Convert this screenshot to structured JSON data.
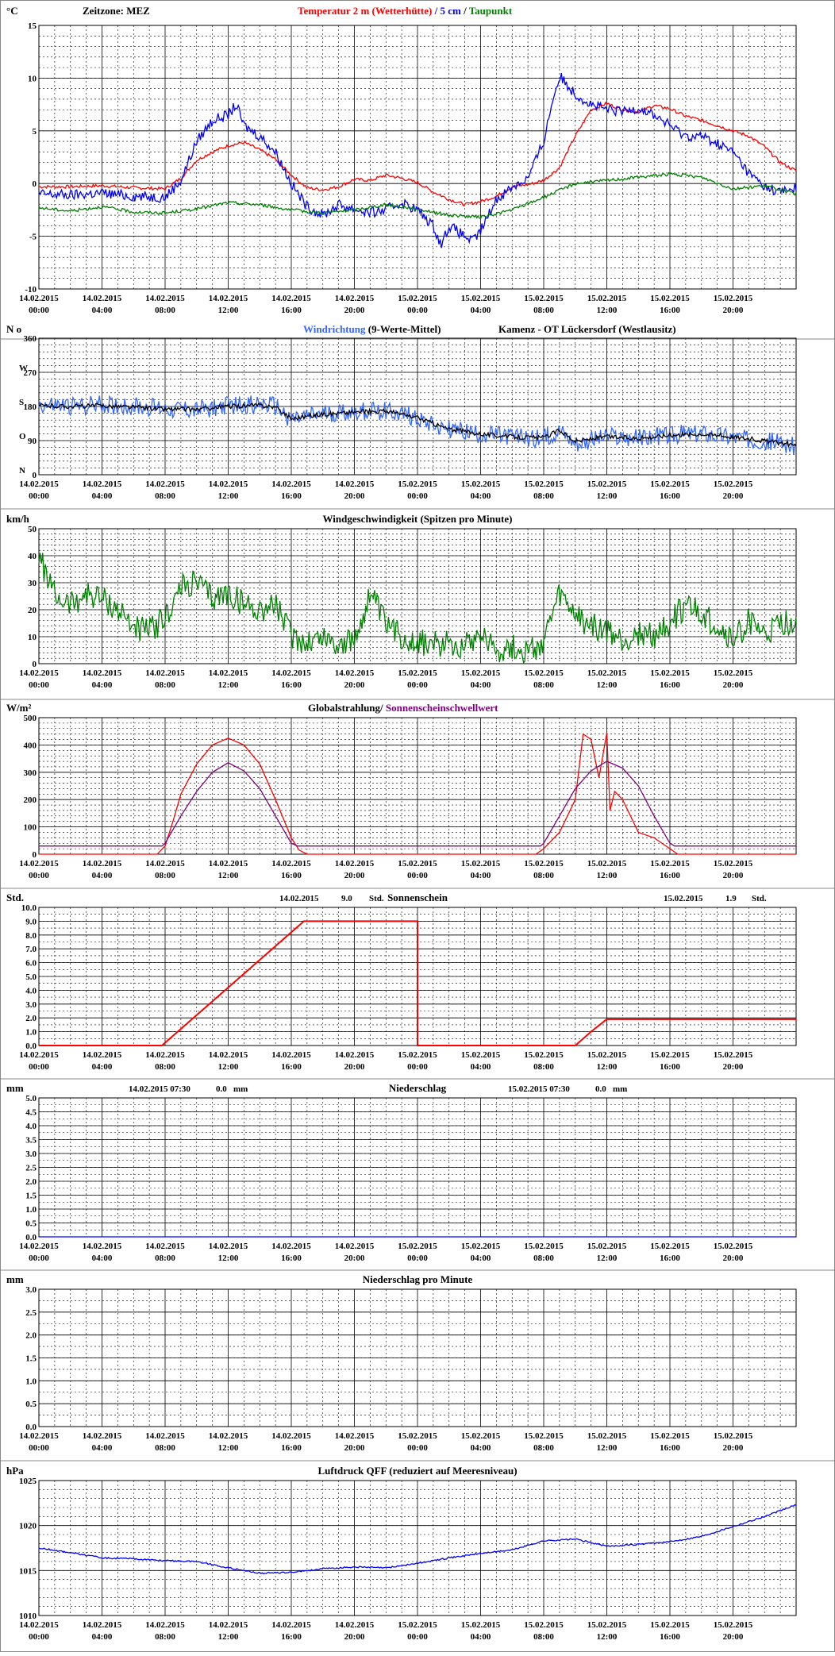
{
  "x_ticks": [
    [
      "14.02.2015",
      "00:00"
    ],
    [
      "14.02.2015",
      "04:00"
    ],
    [
      "14.02.2015",
      "08:00"
    ],
    [
      "14.02.2015",
      "12:00"
    ],
    [
      "14.02.2015",
      "16:00"
    ],
    [
      "14.02.2015",
      "20:00"
    ],
    [
      "15.02.2015",
      "00:00"
    ],
    [
      "15.02.2015",
      "04:00"
    ],
    [
      "15.02.2015",
      "08:00"
    ],
    [
      "15.02.2015",
      "12:00"
    ],
    [
      "15.02.2015",
      "16:00"
    ],
    [
      "15.02.2015",
      "20:00"
    ]
  ],
  "chart_data": [
    {
      "type": "line",
      "unit_label": "°C",
      "timezone_label": "Zeitzone: MEZ",
      "title_parts": [
        {
          "text": "Temperatur 2 m (Wetterhütte)",
          "color": "#ff0000"
        },
        {
          "text": " / ",
          "color": "#0000ff"
        },
        {
          "text": "5 cm",
          "color": "#0000ff"
        },
        {
          "text": " / ",
          "color": "#000000"
        },
        {
          "text": "Taupunkt",
          "color": "#008000"
        }
      ],
      "ylim": [
        -10,
        15
      ],
      "yticks": [
        -10,
        -5,
        0,
        5,
        10,
        15
      ],
      "series": [
        {
          "name": "Temperatur 2 m (Wetterhütte)",
          "color": "#ff0000",
          "x": [
            0,
            2,
            4,
            6,
            8,
            9,
            10,
            11,
            12,
            13,
            14,
            15,
            16,
            17,
            18,
            19,
            20,
            21,
            22,
            23,
            24,
            25,
            26,
            27,
            28,
            29,
            30,
            31,
            32,
            33,
            34,
            35,
            36,
            37,
            38,
            39,
            40,
            41,
            42,
            43,
            44,
            45,
            46,
            47,
            48
          ],
          "values": [
            -0.3,
            -0.3,
            -0.2,
            -0.4,
            -0.5,
            0.5,
            2.2,
            3.0,
            3.6,
            3.9,
            3.2,
            2.3,
            0.8,
            -0.4,
            -0.6,
            -0.3,
            0.4,
            0.3,
            0.8,
            0.5,
            0.1,
            -0.8,
            -1.5,
            -2.0,
            -1.7,
            -1.2,
            -0.3,
            -0.1,
            0.3,
            1.5,
            4.5,
            7.0,
            7.6,
            7.0,
            6.8,
            7.4,
            7.1,
            6.4,
            6.0,
            5.5,
            5.0,
            4.5,
            3.5,
            2.0,
            1.2
          ]
        },
        {
          "name": "5 cm",
          "color": "#0000ff",
          "x": [
            0,
            2,
            4,
            6,
            8,
            9,
            10,
            11,
            12,
            12.5,
            13,
            14,
            15,
            16,
            17,
            18,
            19,
            20,
            21,
            22,
            23,
            24,
            25,
            25.5,
            26,
            27,
            27.5,
            28,
            29,
            30,
            31,
            32,
            32.5,
            33,
            34,
            35,
            36,
            37,
            38,
            39,
            40,
            41,
            42,
            43,
            44,
            45,
            46,
            47,
            48
          ],
          "values": [
            -1.0,
            -1.1,
            -0.9,
            -1.2,
            -1.3,
            0.3,
            4.0,
            6.0,
            6.5,
            7.5,
            5.5,
            4.5,
            3.0,
            0.0,
            -2.2,
            -3.0,
            -2.0,
            -2.4,
            -2.8,
            -2.5,
            -1.8,
            -2.5,
            -4.0,
            -5.8,
            -4.0,
            -5.0,
            -5.5,
            -4.5,
            -1.5,
            -0.3,
            0.5,
            4.0,
            7.5,
            10.2,
            8.5,
            7.5,
            7.0,
            6.8,
            7.2,
            6.5,
            5.5,
            4.5,
            4.5,
            3.8,
            3.0,
            1.0,
            -0.3,
            -0.8,
            -0.4
          ]
        },
        {
          "name": "Taupunkt",
          "color": "#008000",
          "x": [
            0,
            2,
            4,
            6,
            8,
            10,
            12,
            14,
            16,
            18,
            20,
            22,
            24,
            26,
            28,
            30,
            32,
            34,
            36,
            38,
            40,
            42,
            44,
            46,
            48
          ],
          "values": [
            -2.3,
            -2.6,
            -2.2,
            -2.7,
            -2.8,
            -2.4,
            -1.8,
            -2.0,
            -2.5,
            -2.8,
            -2.5,
            -2.0,
            -2.4,
            -3.0,
            -3.2,
            -2.5,
            -1.3,
            0.0,
            0.3,
            0.6,
            0.9,
            0.6,
            -0.5,
            -0.2,
            -1.0
          ]
        }
      ]
    },
    {
      "type": "line",
      "unit_label": "N o",
      "title_parts": [
        {
          "text": "Windrichtung",
          "color": "#3366ff"
        },
        {
          "text": " (9-Werte-Mittel)",
          "color": "#000000"
        }
      ],
      "station_label": "Kamenz - OT Lückersdorf (Westlausitz)",
      "ylim": [
        0,
        360
      ],
      "yticks": [
        0,
        90,
        180,
        270,
        360
      ],
      "compass_labels": [
        "N",
        "O",
        "S",
        "W"
      ],
      "series": [
        {
          "name": "Windrichtung",
          "color": "#3366ff",
          "x": [
            0,
            2,
            4,
            6,
            8,
            10,
            12,
            14,
            15,
            16,
            18,
            20,
            22,
            24,
            26,
            28,
            30,
            32,
            33,
            34,
            36,
            38,
            40,
            42,
            44,
            46,
            48
          ],
          "values": [
            185,
            180,
            185,
            180,
            175,
            170,
            182,
            185,
            180,
            145,
            160,
            165,
            170,
            150,
            120,
            105,
            100,
            95,
            120,
            85,
            100,
            95,
            105,
            110,
            100,
            90,
            75
          ]
        },
        {
          "name": "9-Werte-Mittel",
          "color": "#000000",
          "x": [
            0,
            2,
            4,
            6,
            8,
            10,
            12,
            14,
            15,
            16,
            18,
            20,
            22,
            24,
            26,
            28,
            30,
            32,
            33,
            34,
            36,
            38,
            40,
            42,
            44,
            46,
            48
          ],
          "values": [
            182,
            180,
            182,
            178,
            173,
            172,
            180,
            183,
            178,
            148,
            160,
            165,
            168,
            150,
            120,
            108,
            100,
            97,
            118,
            88,
            100,
            96,
            104,
            108,
            100,
            90,
            78
          ]
        }
      ]
    },
    {
      "type": "line",
      "unit_label": "km/h",
      "title": "Windgeschwindigkeit (Spitzen pro Minute)",
      "ylim": [
        0,
        50
      ],
      "yticks": [
        0,
        10,
        20,
        30,
        40,
        50
      ],
      "series": [
        {
          "name": "Windgeschwindigkeit",
          "color": "#008000",
          "x": [
            0,
            1,
            2,
            3,
            4,
            5,
            6,
            7,
            8,
            9,
            10,
            11,
            12,
            13,
            14,
            15,
            16,
            17,
            18,
            19,
            20,
            21,
            22,
            23,
            24,
            25,
            26,
            27,
            28,
            29,
            30,
            31,
            32,
            33,
            34,
            35,
            36,
            37,
            38,
            39,
            40,
            41,
            42,
            43,
            44,
            45,
            46,
            47,
            48
          ],
          "values": [
            40,
            25,
            22,
            26,
            24,
            20,
            14,
            12,
            17,
            28,
            30,
            24,
            26,
            22,
            20,
            22,
            10,
            8,
            10,
            7,
            8,
            26,
            14,
            10,
            8,
            7,
            8,
            7,
            12,
            5,
            6,
            4,
            8,
            25,
            18,
            14,
            12,
            8,
            11,
            10,
            15,
            22,
            18,
            14,
            8,
            16,
            10,
            14,
            16
          ]
        }
      ]
    },
    {
      "type": "line",
      "unit_label": "W/m²",
      "title_parts": [
        {
          "text": "Globalstrahlung/ ",
          "color": "#000000"
        },
        {
          "text": "Sonnenscheinschwellwert",
          "color": "#800080"
        }
      ],
      "ylim": [
        0,
        500
      ],
      "yticks": [
        0,
        100,
        200,
        300,
        400,
        500
      ],
      "series": [
        {
          "name": "Globalstrahlung",
          "color": "#ff0000",
          "x": [
            0,
            7.5,
            8,
            8.5,
            9,
            10,
            11,
            12,
            13,
            14,
            15,
            16,
            16.5,
            17,
            24,
            31.5,
            32,
            33,
            34,
            34.5,
            35,
            35.5,
            36,
            36.2,
            36.5,
            37,
            38,
            39,
            40,
            40.5,
            48
          ],
          "values": [
            0,
            0,
            30,
            120,
            220,
            330,
            400,
            425,
            400,
            330,
            200,
            60,
            15,
            0,
            0,
            0,
            20,
            80,
            200,
            440,
            420,
            280,
            445,
            160,
            230,
            200,
            80,
            60,
            20,
            0,
            0
          ]
        },
        {
          "name": "Sonnenscheinschwellwert",
          "color": "#800080",
          "x": [
            0,
            7.8,
            8,
            9,
            10,
            11,
            12,
            13,
            14,
            15,
            16,
            16.4,
            17,
            24,
            31.8,
            32,
            33,
            34,
            35,
            36,
            37,
            38,
            39,
            40,
            40.3,
            48
          ],
          "values": [
            30,
            30,
            40,
            140,
            230,
            300,
            335,
            305,
            240,
            140,
            40,
            30,
            30,
            30,
            30,
            40,
            140,
            240,
            305,
            340,
            315,
            250,
            140,
            40,
            30,
            30
          ]
        }
      ]
    },
    {
      "type": "line",
      "unit_label": "Std.",
      "title": "Sonnenschein",
      "summaries": [
        {
          "date": "14.02.2015",
          "value": "9.0",
          "unit": "Std."
        },
        {
          "date": "15.02.2015",
          "value": "1.9",
          "unit": "Std."
        }
      ],
      "ylim": [
        0,
        10
      ],
      "yticks": [
        "0.0",
        "1.0",
        "2.0",
        "3.0",
        "4.0",
        "5.0",
        "6.0",
        "7.0",
        "8.0",
        "9.0",
        "10.0"
      ],
      "series": [
        {
          "name": "Sonnenschein",
          "color": "#ff0000",
          "x": [
            0,
            7.8,
            16.8,
            24,
            24,
            24.001,
            34,
            35,
            36,
            48
          ],
          "values": [
            0,
            0,
            9.0,
            9.0,
            9.0,
            0,
            0,
            1.0,
            1.9,
            1.9
          ]
        }
      ]
    },
    {
      "type": "line",
      "unit_label": "mm",
      "title": "Niederschlag",
      "summaries": [
        {
          "date": "14.02.2015 07:30",
          "value": "0.0",
          "unit": "mm"
        },
        {
          "date": "15.02.2015 07:30",
          "value": "0.0",
          "unit": "mm"
        }
      ],
      "ylim": [
        0,
        5
      ],
      "yticks": [
        "0.0",
        "0.5",
        "1.0",
        "1.5",
        "2.0",
        "2.5",
        "3.0",
        "3.5",
        "4.0",
        "4.5",
        "5.0"
      ],
      "series": [
        {
          "name": "Niederschlag",
          "color": "#0000ff",
          "x": [
            0,
            48
          ],
          "values": [
            0,
            0
          ]
        }
      ]
    },
    {
      "type": "line",
      "unit_label": "mm",
      "title": "Niederschlag pro Minute",
      "ylim": [
        0,
        3
      ],
      "yticks": [
        "0.0",
        "0.5",
        "1.0",
        "1.5",
        "2.0",
        "2.5",
        "3.0"
      ],
      "series": []
    },
    {
      "type": "line",
      "unit_label": "hPa",
      "title": "Luftdruck QFF (reduziert auf Meeresniveau)",
      "ylim": [
        1010,
        1025
      ],
      "yticks": [
        1010,
        1015,
        1020,
        1025
      ],
      "series": [
        {
          "name": "Luftdruck QFF",
          "color": "#0000ff",
          "x": [
            0,
            2,
            4,
            6,
            8,
            10,
            12,
            14,
            16,
            18,
            20,
            22,
            24,
            26,
            28,
            30,
            32,
            34,
            36,
            38,
            40,
            42,
            44,
            46,
            48
          ],
          "values": [
            1017.5,
            1017.0,
            1016.4,
            1016.3,
            1016.1,
            1016.0,
            1015.3,
            1014.7,
            1014.8,
            1015.2,
            1015.4,
            1015.3,
            1015.8,
            1016.4,
            1016.9,
            1017.3,
            1018.3,
            1018.5,
            1017.7,
            1017.9,
            1018.2,
            1018.8,
            1019.9,
            1021.0,
            1022.3
          ]
        }
      ]
    }
  ]
}
